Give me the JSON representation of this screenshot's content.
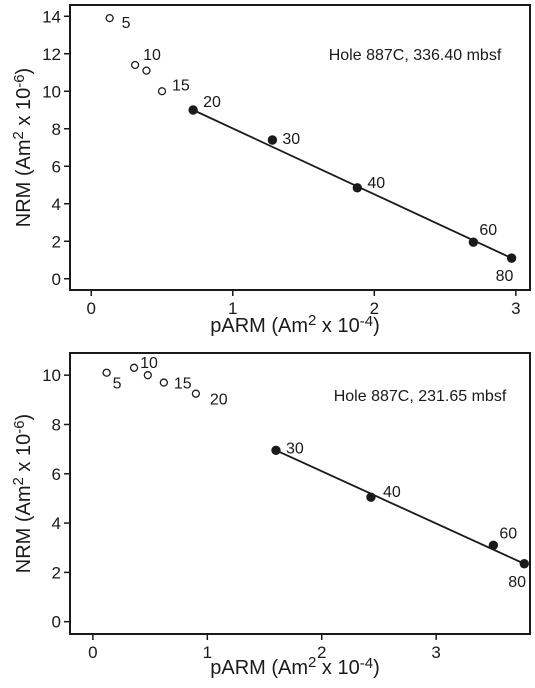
{
  "chart_data": [
    {
      "type": "scatter",
      "annotation": "Hole 887C, 336.40 mbsf",
      "xlabel": "pARM (Am² x 10-4)",
      "ylabel": "NRM (Am² x 10-6)",
      "xlim": [
        -0.15,
        3.1
      ],
      "ylim": [
        -0.6,
        14.6
      ],
      "xticks": [
        0,
        1,
        2,
        3
      ],
      "yticks": [
        0,
        2,
        4,
        6,
        8,
        10,
        12,
        14
      ],
      "xtick_labels": [
        "0",
        "1",
        "2",
        "3"
      ],
      "ytick_labels": [
        "0",
        "2",
        "4",
        "6",
        "8",
        "10",
        "12",
        "14"
      ],
      "series": [
        {
          "marker": "open-circle",
          "points": [
            {
              "x": 0.13,
              "y": 13.9,
              "label": "5"
            },
            {
              "x": 0.31,
              "y": 11.4,
              "label": "10"
            },
            {
              "x": 0.39,
              "y": 11.1,
              "label": ""
            },
            {
              "x": 0.5,
              "y": 10.0,
              "label": "15"
            }
          ]
        },
        {
          "marker": "filled-circle",
          "points": [
            {
              "x": 0.72,
              "y": 9.0,
              "label": "20"
            },
            {
              "x": 1.28,
              "y": 7.4,
              "label": "30"
            },
            {
              "x": 1.88,
              "y": 4.85,
              "label": "40"
            },
            {
              "x": 2.7,
              "y": 1.95,
              "label": "60"
            },
            {
              "x": 2.97,
              "y": 1.1,
              "label": "80"
            }
          ]
        }
      ],
      "fit_line": {
        "x": [
          0.72,
          2.97
        ],
        "y": [
          9.0,
          1.1
        ]
      }
    },
    {
      "type": "scatter",
      "annotation": "Hole 887C, 231.65 mbsf",
      "xlabel": "pARM (Am² x 10-4)",
      "ylabel": "NRM (Am² x 10-6)",
      "xlim": [
        -0.2,
        3.82
      ],
      "ylim": [
        -0.5,
        10.9
      ],
      "xticks": [
        0,
        1,
        2,
        3
      ],
      "yticks": [
        0,
        2,
        4,
        6,
        8,
        10
      ],
      "xtick_labels": [
        "0",
        "1",
        "2",
        "3"
      ],
      "ytick_labels": [
        "0",
        "2",
        "4",
        "6",
        "8",
        "10"
      ],
      "series": [
        {
          "marker": "open-circle",
          "points": [
            {
              "x": 0.12,
              "y": 10.1,
              "label": "5"
            },
            {
              "x": 0.36,
              "y": 10.3,
              "label": "10"
            },
            {
              "x": 0.48,
              "y": 10.0,
              "label": ""
            },
            {
              "x": 0.62,
              "y": 9.7,
              "label": "15"
            },
            {
              "x": 0.9,
              "y": 9.25,
              "label": "20"
            }
          ]
        },
        {
          "marker": "filled-circle",
          "points": [
            {
              "x": 1.6,
              "y": 6.95,
              "label": "30"
            },
            {
              "x": 2.43,
              "y": 5.05,
              "label": "40"
            },
            {
              "x": 3.5,
              "y": 3.1,
              "label": "60"
            },
            {
              "x": 3.77,
              "y": 2.35,
              "label": "80"
            }
          ]
        }
      ],
      "fit_line": {
        "x": [
          1.6,
          3.77
        ],
        "y": [
          6.95,
          2.35
        ]
      }
    }
  ]
}
